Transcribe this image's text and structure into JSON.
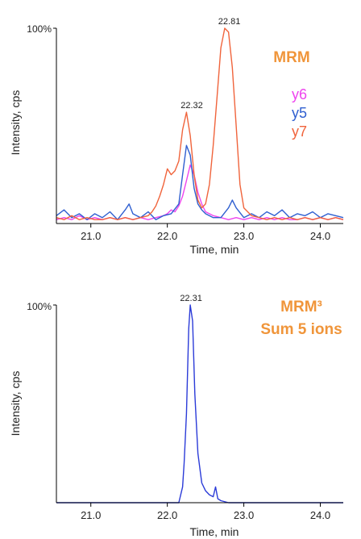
{
  "chart_data": [
    {
      "type": "line",
      "xlabel": "Time, min",
      "ylabel": "Intensity, cps",
      "ylim_label": "100%",
      "xlim": [
        20.55,
        24.3
      ],
      "ylim": [
        0,
        100
      ],
      "xticks": [
        21.0,
        22.0,
        23.0,
        24.0
      ],
      "tick_labels": [
        "21.0",
        "22.0",
        "23.0",
        "24.0"
      ],
      "legend_title": "MRM",
      "legend_title_color": "#f0953a",
      "legend_placement": "right",
      "peak_labels": [
        {
          "text": "22.32",
          "x": 22.32,
          "y": 57
        },
        {
          "text": "22.81",
          "x": 22.81,
          "y": 100
        }
      ],
      "series": [
        {
          "name": "y6",
          "color": "#ee44ee",
          "x": [
            20.55,
            20.65,
            20.75,
            20.85,
            20.95,
            21.05,
            21.15,
            21.25,
            21.35,
            21.45,
            21.55,
            21.65,
            21.75,
            21.85,
            21.95,
            22.0,
            22.05,
            22.1,
            22.15,
            22.2,
            22.25,
            22.3,
            22.35,
            22.4,
            22.45,
            22.5,
            22.6,
            22.7,
            22.8,
            22.9,
            23.0,
            23.1,
            23.2,
            23.3,
            23.4,
            23.5,
            23.6,
            23.7,
            23.8,
            23.9,
            24.0,
            24.1,
            24.2,
            24.3
          ],
          "values": [
            2,
            3,
            2,
            4,
            2,
            3,
            2,
            3,
            2,
            3,
            2,
            3,
            2,
            3,
            4,
            5,
            7,
            6,
            9,
            14,
            22,
            30,
            25,
            16,
            10,
            6,
            4,
            3,
            2,
            3,
            2,
            3,
            2,
            3,
            2,
            3,
            2,
            2,
            3,
            2,
            3,
            2,
            3,
            2
          ]
        },
        {
          "name": "y5",
          "color": "#2f5fd0",
          "x": [
            20.55,
            20.65,
            20.75,
            20.85,
            20.95,
            21.05,
            21.15,
            21.25,
            21.35,
            21.45,
            21.5,
            21.55,
            21.65,
            21.75,
            21.85,
            21.95,
            22.05,
            22.15,
            22.2,
            22.25,
            22.3,
            22.35,
            22.4,
            22.45,
            22.5,
            22.6,
            22.7,
            22.8,
            22.85,
            22.9,
            23.0,
            23.1,
            23.2,
            23.3,
            23.4,
            23.5,
            23.6,
            23.7,
            23.8,
            23.9,
            24.0,
            24.1,
            24.2,
            24.3
          ],
          "values": [
            4,
            7,
            3,
            5,
            2,
            5,
            3,
            6,
            2,
            7,
            10,
            5,
            3,
            6,
            2,
            4,
            5,
            10,
            25,
            40,
            35,
            18,
            10,
            7,
            5,
            3,
            3,
            8,
            12,
            8,
            3,
            5,
            3,
            6,
            4,
            7,
            3,
            5,
            4,
            6,
            3,
            5,
            4,
            3
          ]
        },
        {
          "name": "y7",
          "color": "#f0643c",
          "x": [
            20.55,
            20.65,
            20.75,
            20.85,
            20.95,
            21.05,
            21.15,
            21.25,
            21.35,
            21.45,
            21.55,
            21.65,
            21.75,
            21.8,
            21.85,
            21.9,
            21.95,
            22.0,
            22.05,
            22.1,
            22.15,
            22.2,
            22.25,
            22.3,
            22.35,
            22.4,
            22.45,
            22.5,
            22.55,
            22.6,
            22.65,
            22.7,
            22.75,
            22.8,
            22.85,
            22.9,
            22.95,
            23.0,
            23.1,
            23.2,
            23.3,
            23.4,
            23.5,
            23.6,
            23.7,
            23.8,
            23.9,
            24.0,
            24.1,
            24.2,
            24.3
          ],
          "values": [
            3,
            2,
            4,
            2,
            3,
            2,
            2,
            3,
            2,
            3,
            2,
            3,
            4,
            6,
            9,
            14,
            20,
            28,
            25,
            27,
            32,
            48,
            57,
            45,
            25,
            12,
            8,
            10,
            20,
            40,
            65,
            90,
            100,
            98,
            80,
            50,
            20,
            8,
            4,
            3,
            2,
            3,
            2,
            3,
            2,
            3,
            2,
            3,
            2,
            3,
            2
          ]
        }
      ]
    },
    {
      "type": "line",
      "xlabel": "Time, min",
      "ylabel": "Intensity, cps",
      "ylim_label": "100%",
      "xlim": [
        20.55,
        24.3
      ],
      "ylim": [
        0,
        100
      ],
      "xticks": [
        21.0,
        22.0,
        23.0,
        24.0
      ],
      "tick_labels": [
        "21.0",
        "22.0",
        "23.0",
        "24.0"
      ],
      "legend_title_lines": [
        "MRM³",
        "Sum 5 ions"
      ],
      "legend_title_color": "#f0953a",
      "legend_placement": "top-right",
      "peak_labels": [
        {
          "text": "22.31",
          "x": 22.31,
          "y": 100
        }
      ],
      "series": [
        {
          "color": "#2b3bd8",
          "x": [
            20.55,
            21.0,
            21.5,
            22.0,
            22.15,
            22.2,
            22.22,
            22.25,
            22.28,
            22.3,
            22.33,
            22.36,
            22.4,
            22.45,
            22.5,
            22.55,
            22.6,
            22.63,
            22.66,
            22.7,
            22.8,
            23.0,
            23.5,
            24.0,
            24.3
          ],
          "values": [
            0,
            0,
            0,
            0,
            0,
            8,
            20,
            45,
            88,
            100,
            92,
            55,
            25,
            10,
            6,
            4,
            3,
            8,
            2,
            1,
            0,
            0,
            0,
            0,
            0
          ]
        }
      ]
    }
  ]
}
